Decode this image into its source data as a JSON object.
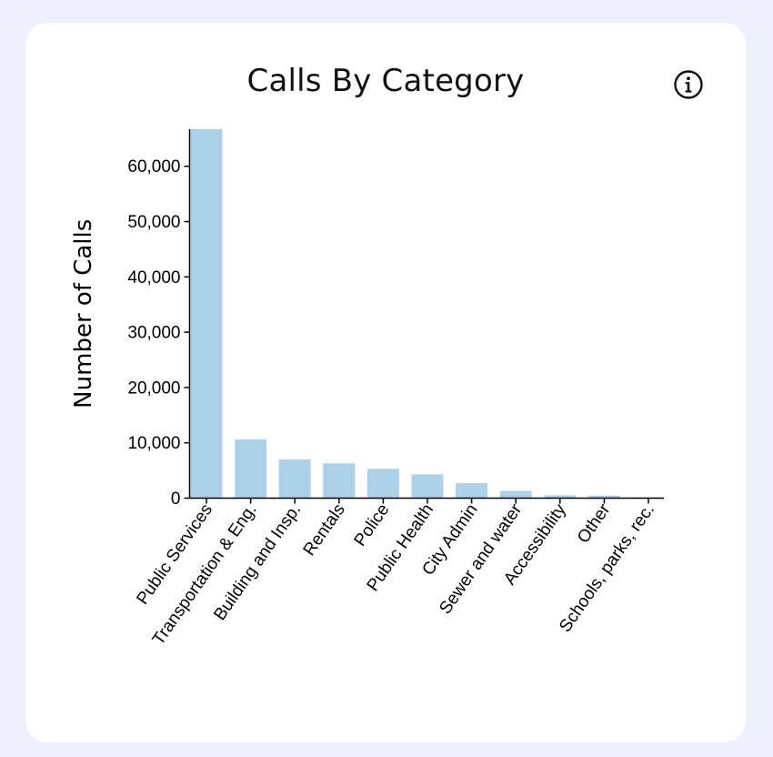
{
  "info_icon": "info-circle-icon",
  "colors": {
    "background": "#eef0fd",
    "card": "#ffffff",
    "bar": "#abd2e9",
    "axis": "#000000"
  },
  "chart_data": {
    "type": "bar",
    "title": "Calls By Category",
    "xlabel": "",
    "ylabel": "Number of Calls",
    "categories": [
      "Public Services",
      "Transportation & Eng.",
      "Building and Insp.",
      "Rentals",
      "Police",
      "Public Health",
      "City Admin",
      "Sewer and water",
      "Accessibility",
      "Other",
      "Schools, parks, rec."
    ],
    "values": [
      66700,
      10600,
      7000,
      6300,
      5300,
      4300,
      2700,
      1300,
      500,
      450,
      150
    ],
    "ylim": [
      0,
      66700
    ],
    "yticks": [
      0,
      10000,
      20000,
      30000,
      40000,
      50000,
      60000
    ],
    "ytick_labels": [
      "0",
      "10,000",
      "20,000",
      "30,000",
      "40,000",
      "50,000",
      "60,000"
    ],
    "grid": false,
    "legend": "none"
  }
}
